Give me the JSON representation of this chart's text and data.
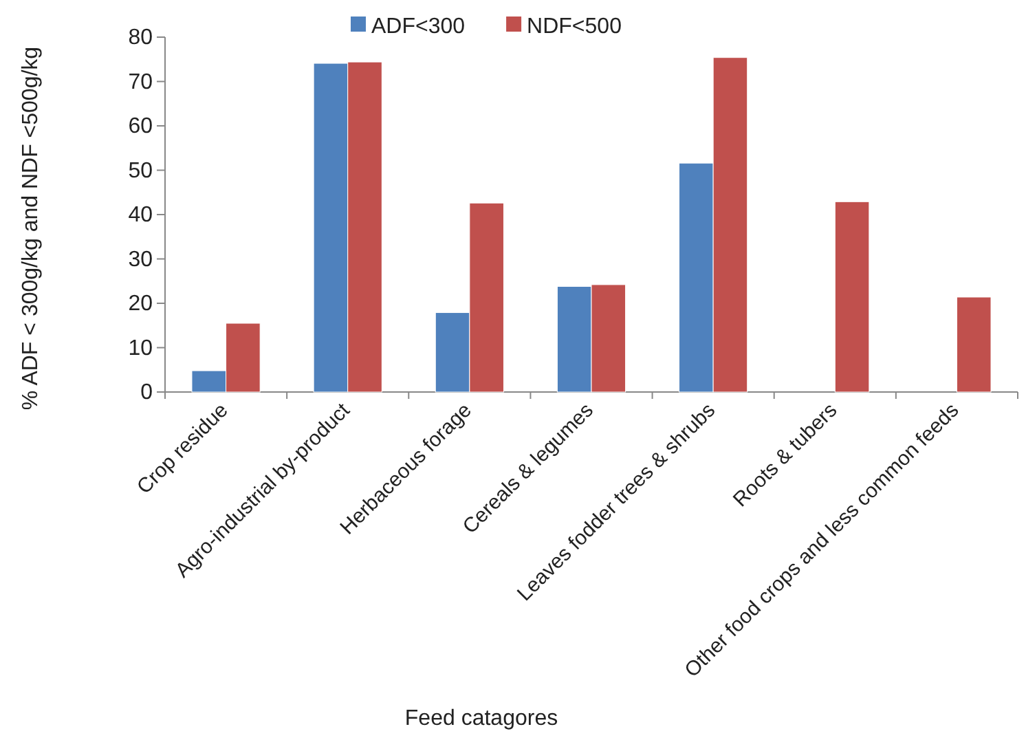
{
  "chart_data": {
    "type": "bar",
    "xlabel": "Feed catagores",
    "ylabel": "% ADF < 300g/kg and NDF <500g/kg",
    "categories": [
      "Crop residue",
      "Agro-industrial by-product",
      "Herbaceous forage",
      "Cereals & legumes",
      "Leaves fodder trees & shrubs",
      "Roots & tubers",
      "Other food crops and less common feeds"
    ],
    "series": [
      {
        "name": "ADF<300",
        "color": "#4f81bd",
        "values": [
          4.8,
          74.1,
          17.9,
          23.8,
          51.6,
          0,
          0
        ]
      },
      {
        "name": "NDF<500",
        "color": "#c0504d",
        "values": [
          15.5,
          74.4,
          42.6,
          24.2,
          75.4,
          42.9,
          21.4
        ]
      }
    ],
    "ylim": [
      0,
      80
    ],
    "yticks": [
      0,
      10,
      20,
      30,
      40,
      50,
      60,
      70,
      80
    ],
    "grid": false,
    "legend": "top"
  }
}
